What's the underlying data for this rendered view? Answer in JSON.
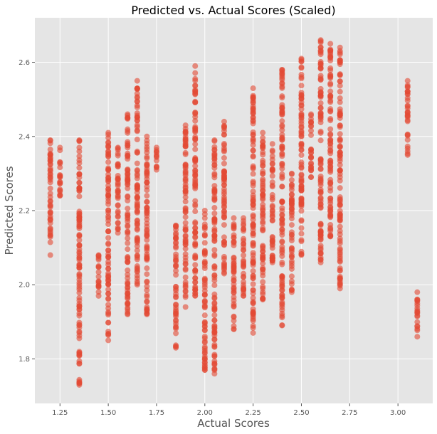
{
  "chart_data": {
    "type": "scatter",
    "title": "Predicted vs. Actual Scores (Scaled)",
    "xlabel": "Actual Scores",
    "ylabel": "Predicted Scores",
    "xlim": [
      1.12,
      3.18
    ],
    "ylim": [
      1.68,
      2.72
    ],
    "x_ticks": [
      1.25,
      1.5,
      1.75,
      2.0,
      2.25,
      2.5,
      2.75,
      3.0
    ],
    "x_tick_labels": [
      "1.25",
      "1.50",
      "1.75",
      "2.00",
      "2.25",
      "2.50",
      "2.75",
      "3.00"
    ],
    "y_ticks": [
      1.8,
      2.0,
      2.2,
      2.4,
      2.6
    ],
    "y_tick_labels": [
      "1.8",
      "2.0",
      "2.2",
      "2.4",
      "2.6"
    ],
    "grid": true,
    "style": "ggplot",
    "marker_color": "#e24a33",
    "marker_opacity": 0.6,
    "columns": [
      {
        "x": 1.2,
        "min": 2.08,
        "max": 2.39
      },
      {
        "x": 1.25,
        "min": 2.24,
        "max": 2.37
      },
      {
        "x": 1.35,
        "min": 1.73,
        "max": 2.39
      },
      {
        "x": 1.45,
        "min": 1.97,
        "max": 2.08
      },
      {
        "x": 1.5,
        "min": 1.85,
        "max": 2.41
      },
      {
        "x": 1.55,
        "min": 2.14,
        "max": 2.37
      },
      {
        "x": 1.6,
        "min": 1.92,
        "max": 2.46
      },
      {
        "x": 1.65,
        "min": 2.0,
        "max": 2.55
      },
      {
        "x": 1.7,
        "min": 1.92,
        "max": 2.4
      },
      {
        "x": 1.75,
        "min": 2.31,
        "max": 2.37
      },
      {
        "x": 1.85,
        "min": 1.83,
        "max": 2.16
      },
      {
        "x": 1.9,
        "min": 1.94,
        "max": 2.43
      },
      {
        "x": 1.95,
        "min": 1.97,
        "max": 2.59
      },
      {
        "x": 2.0,
        "min": 1.77,
        "max": 2.2
      },
      {
        "x": 2.05,
        "min": 1.76,
        "max": 2.39
      },
      {
        "x": 2.1,
        "min": 2.03,
        "max": 2.44
      },
      {
        "x": 2.15,
        "min": 1.88,
        "max": 2.18
      },
      {
        "x": 2.2,
        "min": 1.97,
        "max": 2.18
      },
      {
        "x": 2.25,
        "min": 1.87,
        "max": 2.53
      },
      {
        "x": 2.3,
        "min": 1.96,
        "max": 2.41
      },
      {
        "x": 2.35,
        "min": 2.06,
        "max": 2.38
      },
      {
        "x": 2.4,
        "min": 1.89,
        "max": 2.58
      },
      {
        "x": 2.45,
        "min": 1.98,
        "max": 2.3
      },
      {
        "x": 2.5,
        "min": 2.08,
        "max": 2.61
      },
      {
        "x": 2.55,
        "min": 2.29,
        "max": 2.46
      },
      {
        "x": 2.6,
        "min": 2.06,
        "max": 2.66
      },
      {
        "x": 2.65,
        "min": 2.13,
        "max": 2.65
      },
      {
        "x": 2.7,
        "min": 1.99,
        "max": 2.64
      },
      {
        "x": 3.05,
        "min": 2.35,
        "max": 2.55
      },
      {
        "x": 3.1,
        "min": 1.86,
        "max": 1.98
      }
    ]
  }
}
